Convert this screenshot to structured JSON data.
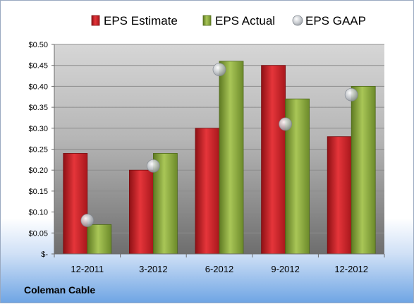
{
  "footer": {
    "company": "Coleman Cable"
  },
  "chart_data": {
    "type": "bar",
    "title": "",
    "xlabel": "",
    "ylabel": "",
    "categories": [
      "12-2011",
      "3-2012",
      "6-2012",
      "9-2012",
      "12-2012"
    ],
    "series": [
      {
        "name": "EPS Estimate",
        "type": "bar",
        "color": "#c8262b",
        "values": [
          0.24,
          0.2,
          0.3,
          0.45,
          0.28
        ]
      },
      {
        "name": "EPS Actual",
        "type": "bar",
        "color": "#8caa3a",
        "values": [
          0.07,
          0.24,
          0.46,
          0.37,
          0.4
        ]
      },
      {
        "name": "EPS GAAP",
        "type": "scatter",
        "color": "#b8bcc2",
        "values": [
          0.08,
          0.21,
          0.44,
          0.31,
          0.38
        ]
      }
    ],
    "ylim": [
      0,
      0.5
    ],
    "yticks": [
      {
        "value": 0,
        "label": "$-"
      },
      {
        "value": 0.05,
        "label": "$0.05"
      },
      {
        "value": 0.1,
        "label": "$0.10"
      },
      {
        "value": 0.15,
        "label": "$0.15"
      },
      {
        "value": 0.2,
        "label": "$0.20"
      },
      {
        "value": 0.25,
        "label": "$0.25"
      },
      {
        "value": 0.3,
        "label": "$0.30"
      },
      {
        "value": 0.35,
        "label": "$0.35"
      },
      {
        "value": 0.4,
        "label": "$0.40"
      },
      {
        "value": 0.45,
        "label": "$0.45"
      },
      {
        "value": 0.5,
        "label": "$0.50"
      }
    ],
    "grid": true,
    "legend_position": "top"
  }
}
